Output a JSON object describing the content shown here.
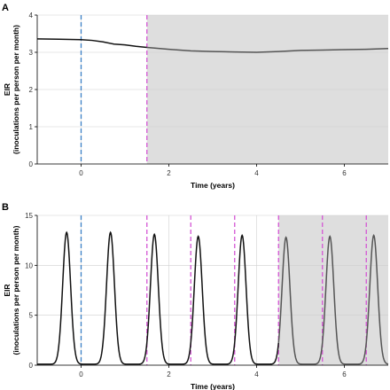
{
  "chart_data": [
    {
      "panel": "A",
      "type": "line",
      "xlabel": "Time (years)",
      "ylabel_lines": [
        "EIR",
        "(inoculations per person per month)"
      ],
      "xlim": [
        -1,
        7
      ],
      "ylim": [
        0,
        4
      ],
      "x_ticks": [
        0,
        2,
        4,
        6
      ],
      "y_ticks": [
        0,
        1,
        2,
        3,
        4
      ],
      "grid": true,
      "shaded_region": [
        1.5,
        7
      ],
      "vlines": [
        {
          "x": 0,
          "color": "#3a7fc6"
        },
        {
          "x": 1.5,
          "color": "#d455d4"
        }
      ],
      "series": [
        {
          "color_before": "#111111",
          "color_after": "#555555",
          "x": [
            -1,
            -0.5,
            0,
            0.25,
            0.5,
            0.75,
            1,
            1.25,
            1.5,
            2,
            2.5,
            3,
            3.5,
            4,
            4.5,
            5,
            5.5,
            6,
            6.5,
            7
          ],
          "y": [
            3.36,
            3.35,
            3.34,
            3.32,
            3.28,
            3.22,
            3.2,
            3.16,
            3.13,
            3.08,
            3.04,
            3.02,
            3.01,
            3.0,
            3.02,
            3.05,
            3.06,
            3.07,
            3.08,
            3.1
          ]
        }
      ]
    },
    {
      "panel": "B",
      "type": "line",
      "xlabel": "Time (years)",
      "ylabel_lines": [
        "EIR",
        "(inoculations per person per month)"
      ],
      "xlim": [
        -1,
        7
      ],
      "ylim": [
        0,
        15
      ],
      "x_ticks": [
        0,
        2,
        4,
        6
      ],
      "y_ticks": [
        0,
        5,
        10,
        15
      ],
      "grid": true,
      "shaded_region": [
        4.5,
        7
      ],
      "vlines": [
        {
          "x": 0,
          "color": "#3a7fc6"
        },
        {
          "x": 1.5,
          "color": "#d455d4"
        },
        {
          "x": 2.5,
          "color": "#d455d4"
        },
        {
          "x": 3.5,
          "color": "#d455d4"
        },
        {
          "x": 4.5,
          "color": "#d455d4"
        },
        {
          "x": 5.5,
          "color": "#d455d4"
        },
        {
          "x": 6.5,
          "color": "#d455d4"
        }
      ],
      "seasonal_peaks": [
        {
          "x": -0.33,
          "y": 13.3
        },
        {
          "x": 0.67,
          "y": 13.3
        },
        {
          "x": 1.67,
          "y": 13.1
        },
        {
          "x": 2.67,
          "y": 12.9
        },
        {
          "x": 3.67,
          "y": 13.0
        },
        {
          "x": 4.67,
          "y": 12.8
        },
        {
          "x": 5.67,
          "y": 12.9
        },
        {
          "x": 6.67,
          "y": 13.0
        }
      ],
      "baseline": 0.1,
      "color_before": "#111111",
      "color_after": "#555555"
    }
  ],
  "panel_labels": [
    "A",
    "B"
  ]
}
